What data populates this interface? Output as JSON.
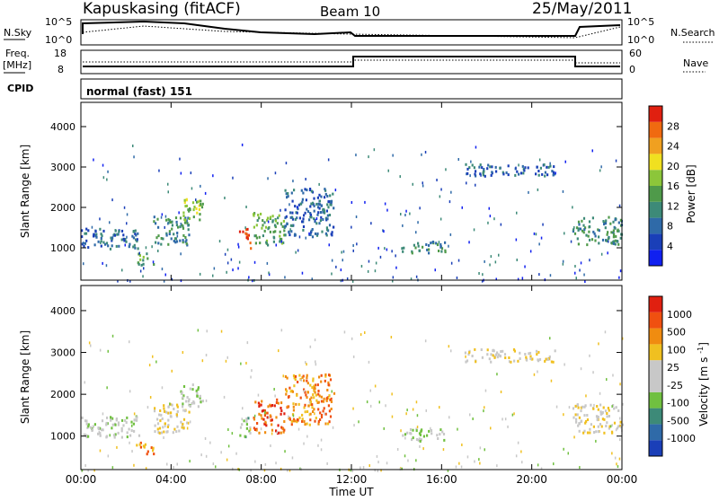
{
  "header": {
    "station": "Kapuskasing (fitACF)",
    "beam": "Beam 10",
    "date": "25/May/2011"
  },
  "top_panels": {
    "nsky_label": "N.Sky",
    "nsky_ticks": [
      "10^5",
      "10^0"
    ],
    "nsearch_label": "N.Search",
    "nsearch_ticks": [
      "10^5",
      "10^0"
    ],
    "freq_label": "Freq.",
    "freq_unit": "[MHz]",
    "freq_ticks": [
      "18",
      "8"
    ],
    "nave_label": "Nave",
    "nave_ticks": [
      "60",
      "0"
    ],
    "cpid_label": "CPID",
    "cpid_value": "normal (fast) 151"
  },
  "colors": {
    "power_scale": [
      "#1020f0",
      "#1a3fb8",
      "#2f6aa8",
      "#3d8a78",
      "#4f9a4a",
      "#8cc63a",
      "#f0e020",
      "#f0a020",
      "#f06a10",
      "#e02010"
    ],
    "velocity_scale": [
      "#1a3fb8",
      "#2f6aa8",
      "#3d8a78",
      "#70c040",
      "#c8c8c8",
      "#c8c8c8",
      "#f0c020",
      "#f08c10",
      "#f05010",
      "#e02010"
    ]
  },
  "chart_data": [
    {
      "type": "heatmap",
      "name": "power",
      "ylabel": "Slant Range [km]",
      "yticks": [
        "1000",
        "2000",
        "3000",
        "4000"
      ],
      "ylim": [
        200,
        4600
      ],
      "xlim": [
        0,
        24
      ],
      "colorbar_label": "Power [dB]",
      "colorbar_ticks": [
        "4",
        "8",
        "12",
        "16",
        "20",
        "24",
        "28"
      ],
      "features": [
        {
          "t0": 0.0,
          "t1": 2.6,
          "r0": 1000,
          "r1": 1500,
          "level": 2
        },
        {
          "t0": 2.4,
          "t1": 3.2,
          "r0": 600,
          "r1": 900,
          "level": 4
        },
        {
          "t0": 3.2,
          "t1": 4.8,
          "r0": 1100,
          "r1": 1800,
          "level": 3
        },
        {
          "t0": 4.4,
          "t1": 5.4,
          "r0": 1700,
          "r1": 2300,
          "level": 5
        },
        {
          "t0": 7.0,
          "t1": 7.5,
          "r0": 1000,
          "r1": 1500,
          "level": 9
        },
        {
          "t0": 7.6,
          "t1": 9.0,
          "r0": 1100,
          "r1": 1900,
          "level": 4
        },
        {
          "t0": 9.0,
          "t1": 11.2,
          "r0": 1300,
          "r1": 2500,
          "level": 2
        },
        {
          "t0": 14.2,
          "t1": 16.2,
          "r0": 900,
          "r1": 1200,
          "level": 3
        },
        {
          "t0": 17.0,
          "t1": 21.0,
          "r0": 2800,
          "r1": 3100,
          "level": 2
        },
        {
          "t0": 21.8,
          "t1": 24.0,
          "r0": 1100,
          "r1": 1800,
          "level": 3
        }
      ]
    },
    {
      "type": "heatmap",
      "name": "velocity",
      "ylabel": "Slant Range [km]",
      "yticks": [
        "1000",
        "2000",
        "3000",
        "4000"
      ],
      "ylim": [
        200,
        4600
      ],
      "xlim": [
        0,
        24
      ],
      "xlabel": "Time UT",
      "xticks": [
        "00:00",
        "04:00",
        "08:00",
        "12:00",
        "16:00",
        "20:00",
        "00:00"
      ],
      "colorbar_label": "Velocity [m s^-1]",
      "colorbar_ticks": [
        "1000",
        "500",
        "100",
        "25",
        "-25",
        "-100",
        "-500",
        "-1000"
      ],
      "features": [
        {
          "t0": 0.0,
          "t1": 2.6,
          "r0": 1000,
          "r1": 1500,
          "level": 4
        },
        {
          "t0": 2.4,
          "t1": 3.2,
          "r0": 600,
          "r1": 900,
          "level": 7
        },
        {
          "t0": 3.2,
          "t1": 4.8,
          "r0": 1100,
          "r1": 1800,
          "level": 5
        },
        {
          "t0": 4.4,
          "t1": 5.4,
          "r0": 1700,
          "r1": 2300,
          "level": 4
        },
        {
          "t0": 7.0,
          "t1": 7.5,
          "r0": 1000,
          "r1": 1500,
          "level": 3
        },
        {
          "t0": 7.6,
          "t1": 9.0,
          "r0": 1100,
          "r1": 1900,
          "level": 8
        },
        {
          "t0": 9.0,
          "t1": 11.2,
          "r0": 1300,
          "r1": 2500,
          "level": 7
        },
        {
          "t0": 14.2,
          "t1": 16.2,
          "r0": 900,
          "r1": 1200,
          "level": 4
        },
        {
          "t0": 17.0,
          "t1": 21.0,
          "r0": 2800,
          "r1": 3100,
          "level": 5
        },
        {
          "t0": 21.8,
          "t1": 24.0,
          "r0": 1100,
          "r1": 1800,
          "level": 5
        }
      ]
    }
  ]
}
